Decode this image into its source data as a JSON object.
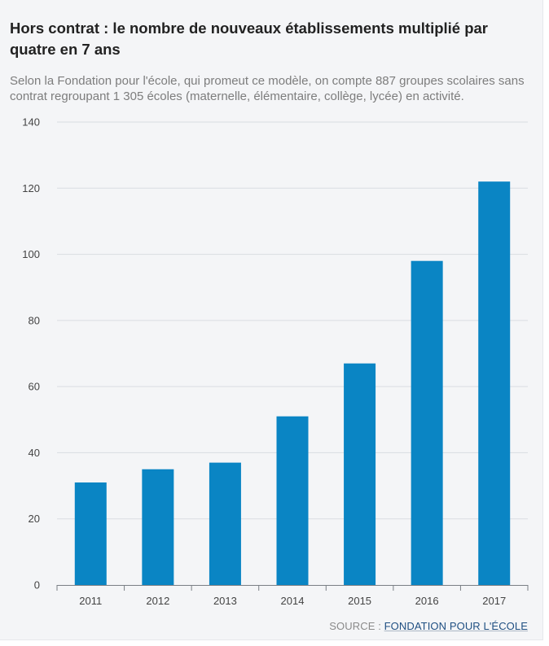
{
  "header": {
    "title": "Hors contrat : le nombre de nouveaux établissements multiplié par quatre en 7 ans",
    "subtitle": "Selon la Fondation pour l'école, qui promeut ce modèle, on compte 887 groupes scolaires sans contrat regroupant 1 305 écoles (maternelle, élémentaire, collège, lycée) en activité."
  },
  "source": {
    "prefix": "SOURCE : ",
    "link": "FONDATION POUR L'ÉCOLE"
  },
  "colors": {
    "bar": "#0a85c4",
    "grid": "#d9dde2",
    "axis": "#7a7f85",
    "tick_text": "#444444"
  },
  "chart_data": {
    "type": "bar",
    "categories": [
      "2011",
      "2012",
      "2013",
      "2014",
      "2015",
      "2016",
      "2017"
    ],
    "values": [
      31,
      35,
      37,
      51,
      67,
      98,
      122
    ],
    "ylim": [
      0,
      140
    ],
    "yticks": [
      0,
      20,
      40,
      60,
      80,
      100,
      120,
      140
    ],
    "grid": true,
    "legend": "none",
    "xlabel": "",
    "ylabel": ""
  }
}
